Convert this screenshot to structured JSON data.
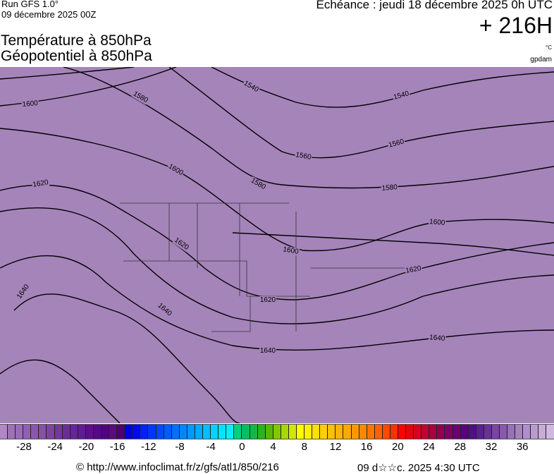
{
  "header": {
    "run": "Run GFS 1.0°",
    "run_date": "09 décembre 2025 00Z",
    "echeance": "Echéance : jeudi 18 décembre 2025 0h UTC",
    "lead": "+ 216H",
    "title_line1": "Température à 850hPa",
    "title_line2": "Géopotentiel à 850hPa",
    "unit_temp": "°C",
    "unit_geo": "gpdam"
  },
  "map": {
    "background": "#a584ba",
    "contour_labels": [
      {
        "text": "1600",
        "lon": "-135",
        "lat": "60"
      },
      {
        "text": "1580"
      },
      {
        "text": "1540"
      },
      {
        "text": "1540"
      },
      {
        "text": "1600"
      },
      {
        "text": "1620"
      },
      {
        "text": "1560"
      },
      {
        "text": "1560"
      },
      {
        "text": "1580"
      },
      {
        "text": "1580"
      },
      {
        "text": "1620"
      },
      {
        "text": "1600"
      },
      {
        "text": "1600"
      },
      {
        "text": "1620"
      },
      {
        "text": "1640"
      },
      {
        "text": "1640"
      },
      {
        "text": "1620"
      },
      {
        "text": "1640"
      },
      {
        "text": "1640"
      }
    ]
  },
  "colorbar": {
    "ticks": [
      "-28",
      "-24",
      "-20",
      "-16",
      "-12",
      "-8",
      "-4",
      "0",
      "4",
      "8",
      "12",
      "16",
      "20",
      "24",
      "28",
      "32",
      "36"
    ],
    "colors": [
      "#b088c4",
      "#a070b8",
      "#9a6cb6",
      "#9060b0",
      "#8a58aa",
      "#8450a8",
      "#7c44a2",
      "#74389c",
      "#6c2c98",
      "#662496",
      "#601c90",
      "#5a108a",
      "#56088a",
      "#520480",
      "#5c0a80",
      "#50006e",
      "#0000e0",
      "#0008f0",
      "#0020ff",
      "#0034ff",
      "#0048ff",
      "#005cff",
      "#0070ff",
      "#0084ff",
      "#0098ff",
      "#00acff",
      "#00c0ff",
      "#00d4ff",
      "#00e4ff",
      "#00f0ff",
      "#00d080",
      "#00c060",
      "#10b848",
      "#30b020",
      "#58b800",
      "#80c800",
      "#a8d800",
      "#d0e800",
      "#ffff00",
      "#fff000",
      "#ffe000",
      "#ffd000",
      "#ffc000",
      "#ffb400",
      "#ffa800",
      "#ff9800",
      "#ff8800",
      "#ff7400",
      "#ff6000",
      "#ff4800",
      "#ff3000",
      "#ff0000",
      "#e80010",
      "#d80020",
      "#c00030",
      "#a80040",
      "#900050",
      "#800060",
      "#6c0070",
      "#5c0080",
      "#501080",
      "#5a2090",
      "#6a3098",
      "#7a44a4",
      "#8858ac",
      "#9870b8",
      "#a484c0",
      "#b090c8",
      "#bc9cd0",
      "#c8acd8",
      "#d0b8e0"
    ]
  },
  "footer": {
    "url": "© http://www.infoclimat.fr/z/gfs/atl1/850/216",
    "date": "09 d☆☆c. 2025  4:30 UTC"
  }
}
